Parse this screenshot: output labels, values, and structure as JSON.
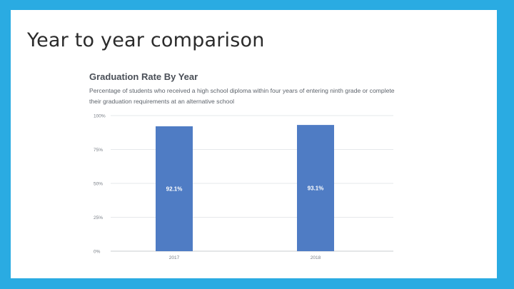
{
  "slide": {
    "title": "Year to year comparison",
    "background_color": "#2aabe2"
  },
  "chart_data": {
    "type": "bar",
    "title": "Graduation Rate By Year",
    "subtitle": "Percentage of students who received a high school diploma within four years of entering ninth grade or complete their graduation requirements at an alternative school",
    "categories": [
      "2017",
      "2018"
    ],
    "values": [
      92.1,
      93.1
    ],
    "data_labels": [
      "92.1%",
      "93.1%"
    ],
    "ylim": [
      0,
      100
    ],
    "yticks": [
      0,
      25,
      50,
      75,
      100
    ],
    "ytick_labels": [
      "0%",
      "25%",
      "50%",
      "75%",
      "100%"
    ],
    "xlabel": "",
    "ylabel": "",
    "grid": true,
    "bar_color": "#4f7cc4"
  }
}
